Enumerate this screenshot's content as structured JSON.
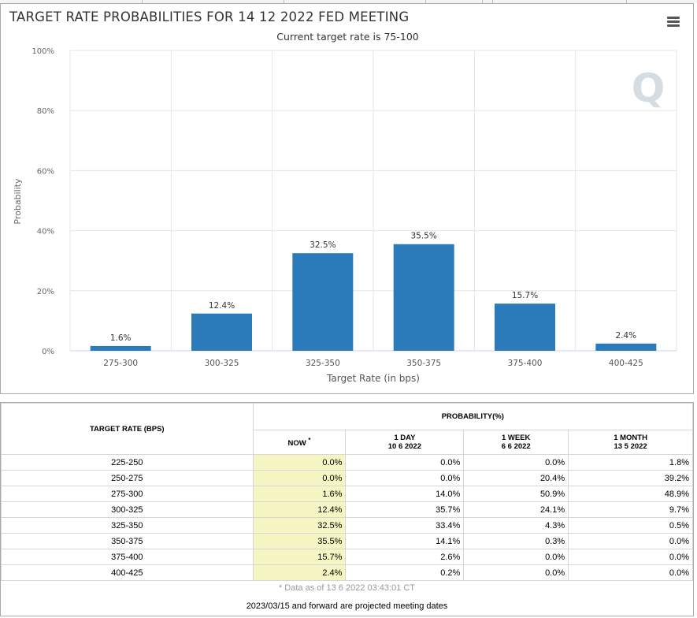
{
  "chart_data": {
    "type": "bar",
    "title": "TARGET RATE PROBABILITIES FOR 14 12 2022 FED MEETING",
    "subtitle": "Current target rate is 75-100",
    "xlabel": "Target Rate (in bps)",
    "ylabel": "Probability",
    "ylim": [
      0,
      100
    ],
    "yticks": [
      "0%",
      "20%",
      "40%",
      "60%",
      "80%",
      "100%"
    ],
    "grid": true,
    "categories": [
      "275-300",
      "300-325",
      "325-350",
      "350-375",
      "375-400",
      "400-425"
    ],
    "values": [
      1.6,
      12.4,
      32.5,
      35.5,
      15.7,
      2.4
    ],
    "data_labels": [
      "1.6%",
      "12.4%",
      "32.5%",
      "35.5%",
      "15.7%",
      "2.4%"
    ],
    "bar_color": "#2b7bba",
    "watermark": "Q"
  },
  "menu_icon": "hamburger-menu-icon",
  "table": {
    "row_header": "TARGET RATE (BPS)",
    "group_header": "PROBABILITY(%)",
    "columns": [
      {
        "label": "NOW",
        "marker": "*",
        "sub": ""
      },
      {
        "label": "1 DAY",
        "sub": "10 6 2022"
      },
      {
        "label": "1 WEEK",
        "sub": "6 6 2022"
      },
      {
        "label": "1 MONTH",
        "sub": "13 5 2022"
      }
    ],
    "rows": [
      {
        "rate": "225-250",
        "now": "0.0%",
        "day": "0.0%",
        "week": "0.0%",
        "month": "1.8%"
      },
      {
        "rate": "250-275",
        "now": "0.0%",
        "day": "0.0%",
        "week": "20.4%",
        "month": "39.2%"
      },
      {
        "rate": "275-300",
        "now": "1.6%",
        "day": "14.0%",
        "week": "50.9%",
        "month": "48.9%"
      },
      {
        "rate": "300-325",
        "now": "12.4%",
        "day": "35.7%",
        "week": "24.1%",
        "month": "9.7%"
      },
      {
        "rate": "325-350",
        "now": "32.5%",
        "day": "33.4%",
        "week": "4.3%",
        "month": "0.5%"
      },
      {
        "rate": "350-375",
        "now": "35.5%",
        "day": "14.1%",
        "week": "0.3%",
        "month": "0.0%"
      },
      {
        "rate": "375-400",
        "now": "15.7%",
        "day": "2.6%",
        "week": "0.0%",
        "month": "0.0%"
      },
      {
        "rate": "400-425",
        "now": "2.4%",
        "day": "0.2%",
        "week": "0.0%",
        "month": "0.0%"
      }
    ],
    "note": "* Data as of 13 6 2022 03:43:01 CT",
    "footer": "2023/03/15 and forward are projected meeting dates"
  },
  "colors": {
    "bar": "#2b7bba",
    "now_highlight": "#f6f5c4",
    "grid": "#e6e6e6"
  }
}
